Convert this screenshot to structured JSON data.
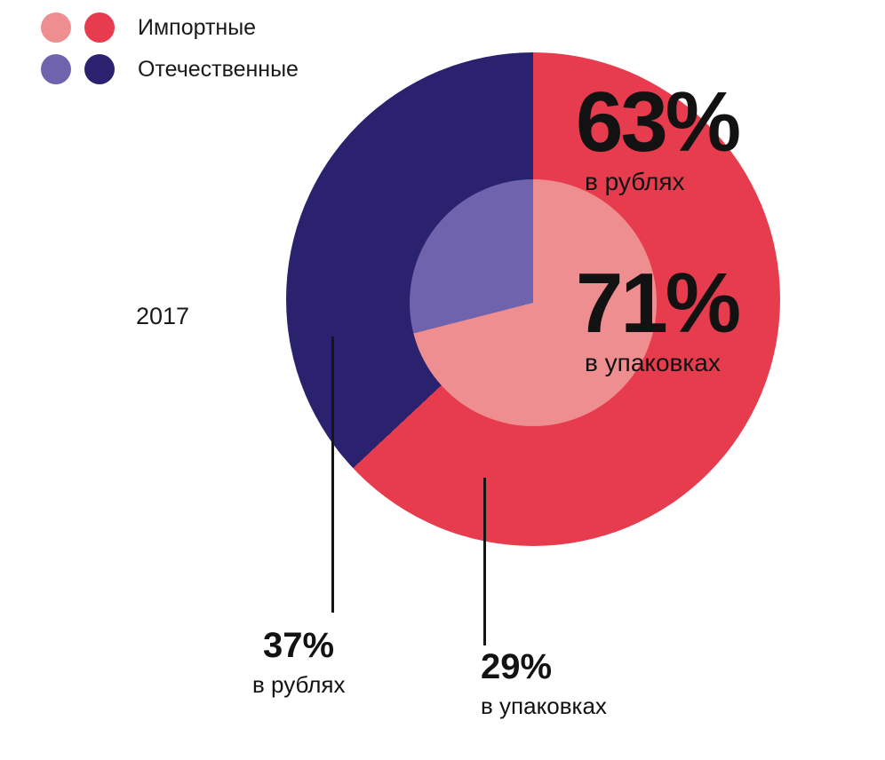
{
  "chart_data": {
    "type": "pie",
    "variant": "nested-donut",
    "year": "2017",
    "legend": [
      {
        "label": "Импортные",
        "swatches": [
          "#ef8e90",
          "#e73c4e"
        ]
      },
      {
        "label": "Отечественные",
        "swatches": [
          "#6f63ae",
          "#2a226e"
        ]
      }
    ],
    "rings": [
      {
        "id": "rubles",
        "metric": "в рублях",
        "radius": "outer",
        "segments": [
          {
            "label": "Импортные",
            "value": 63,
            "color": "#e73c4e"
          },
          {
            "label": "Отечественные",
            "value": 37,
            "color": "#2a226e"
          }
        ]
      },
      {
        "id": "packages",
        "metric": "в упаковках",
        "radius": "inner",
        "segments": [
          {
            "label": "Импортные",
            "value": 71,
            "color": "#ef8e90"
          },
          {
            "label": "Отечественные",
            "value": 29,
            "color": "#6f63ae"
          }
        ]
      }
    ],
    "annotations": [
      {
        "value": "63%",
        "caption": "в рублях",
        "refers_to": "Импортные"
      },
      {
        "value": "71%",
        "caption": "в упаковках",
        "refers_to": "Импортные"
      },
      {
        "value": "37%",
        "caption": "в рублях",
        "refers_to": "Отечественные"
      },
      {
        "value": "29%",
        "caption": "в упаковках",
        "refers_to": "Отечественные"
      }
    ]
  }
}
